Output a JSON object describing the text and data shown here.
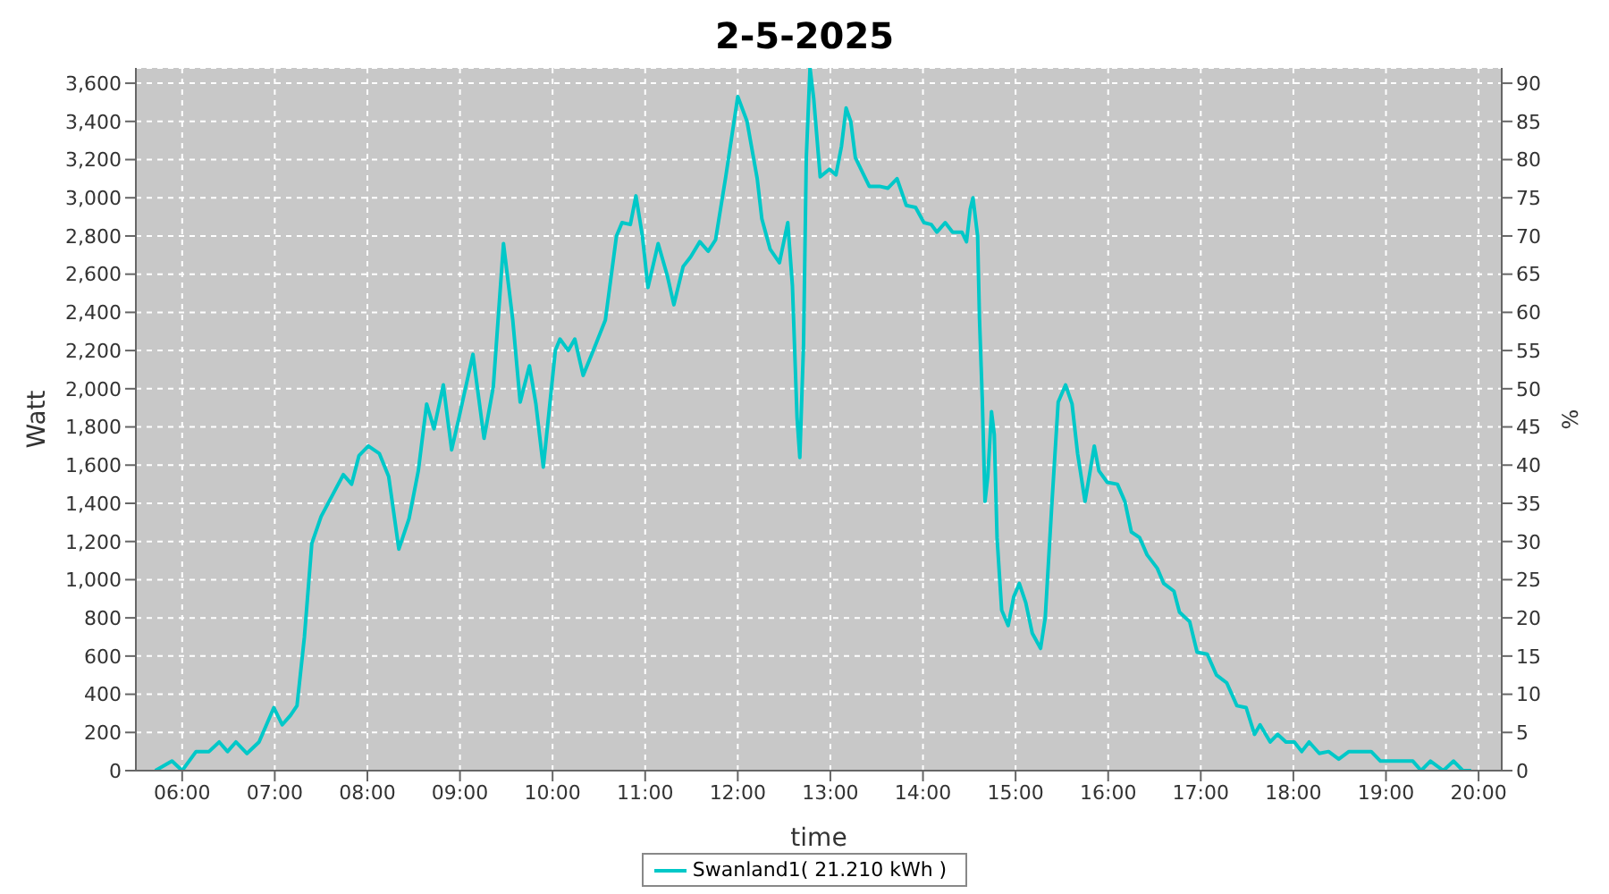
{
  "chart_data": {
    "type": "line",
    "title": "2-5-2025",
    "xlabel": "time",
    "ylabel": "Watt",
    "y2label": "%",
    "x": [
      5.71,
      5.89,
      6.0,
      6.15,
      6.29,
      6.4,
      6.49,
      6.58,
      6.7,
      6.83,
      6.99,
      7.08,
      7.17,
      7.24,
      7.32,
      7.4,
      7.5,
      7.62,
      7.74,
      7.83,
      7.91,
      8.01,
      8.13,
      8.23,
      8.34,
      8.45,
      8.55,
      8.64,
      8.72,
      8.82,
      8.91,
      8.99,
      9.14,
      9.26,
      9.36,
      9.47,
      9.57,
      9.65,
      9.75,
      9.82,
      9.9,
      10.03,
      10.08,
      10.17,
      10.24,
      10.33,
      10.44,
      10.57,
      10.69,
      10.75,
      10.84,
      10.9,
      10.97,
      11.03,
      11.14,
      11.24,
      11.31,
      11.41,
      11.49,
      11.59,
      11.68,
      11.76,
      11.87,
      12.0,
      12.1,
      12.21,
      12.26,
      12.35,
      12.45,
      12.54,
      12.59,
      12.64,
      12.67,
      12.71,
      12.74,
      12.78,
      12.82,
      12.89,
      12.99,
      13.06,
      13.12,
      13.17,
      13.22,
      13.27,
      13.34,
      13.42,
      13.53,
      13.62,
      13.72,
      13.82,
      13.92,
      14.01,
      14.09,
      14.15,
      14.24,
      14.32,
      14.42,
      14.47,
      14.51,
      14.54,
      14.59,
      14.61,
      14.64,
      14.67,
      14.7,
      14.74,
      14.77,
      14.8,
      14.85,
      14.92,
      14.98,
      15.04,
      15.11,
      15.18,
      15.27,
      15.32,
      15.39,
      15.46,
      15.54,
      15.61,
      15.67,
      15.75,
      15.85,
      15.9,
      15.99,
      16.1,
      16.18,
      16.25,
      16.34,
      16.42,
      16.53,
      16.6,
      16.71,
      16.77,
      16.88,
      16.96,
      17.07,
      17.17,
      17.28,
      17.39,
      17.49,
      17.58,
      17.64,
      17.75,
      17.83,
      17.92,
      18.01,
      18.09,
      18.17,
      18.28,
      18.38,
      18.49,
      18.6,
      18.84,
      18.94,
      19.29,
      19.38,
      19.48,
      19.62,
      19.73,
      19.83,
      19.92
    ],
    "series": [
      {
        "name": "Swanland1( 21.210 kWh )",
        "color": "#00c8c8",
        "values": [
          0,
          50,
          0,
          100,
          100,
          150,
          100,
          150,
          90,
          150,
          330,
          240,
          290,
          340,
          700,
          1190,
          1330,
          1440,
          1550,
          1500,
          1650,
          1700,
          1660,
          1540,
          1160,
          1320,
          1570,
          1920,
          1790,
          2020,
          1680,
          1850,
          2180,
          1740,
          2010,
          2760,
          2360,
          1930,
          2120,
          1920,
          1590,
          2200,
          2260,
          2200,
          2260,
          2070,
          2200,
          2360,
          2800,
          2870,
          2860,
          3010,
          2800,
          2530,
          2760,
          2590,
          2440,
          2640,
          2690,
          2770,
          2720,
          2780,
          3110,
          3530,
          3400,
          3100,
          2890,
          2730,
          2660,
          2870,
          2540,
          1850,
          1640,
          2230,
          3210,
          3680,
          3520,
          3110,
          3150,
          3120,
          3270,
          3470,
          3400,
          3210,
          3140,
          3060,
          3060,
          3050,
          3100,
          2960,
          2950,
          2870,
          2860,
          2820,
          2870,
          2820,
          2820,
          2770,
          2940,
          3000,
          2800,
          2370,
          1950,
          1410,
          1540,
          1880,
          1760,
          1220,
          840,
          760,
          910,
          980,
          880,
          720,
          640,
          800,
          1380,
          1930,
          2020,
          1920,
          1660,
          1410,
          1700,
          1570,
          1510,
          1500,
          1410,
          1250,
          1220,
          1130,
          1060,
          980,
          940,
          830,
          780,
          620,
          610,
          500,
          460,
          340,
          330,
          190,
          240,
          150,
          190,
          150,
          150,
          100,
          150,
          90,
          100,
          60,
          100,
          100,
          50,
          50,
          0,
          50,
          0,
          50,
          0,
          0
        ]
      }
    ],
    "xlim": [
      5.5,
      20.25
    ],
    "xticks": [
      {
        "value": 6,
        "label": "06:00"
      },
      {
        "value": 7,
        "label": "07:00"
      },
      {
        "value": 8,
        "label": "08:00"
      },
      {
        "value": 9,
        "label": "09:00"
      },
      {
        "value": 10,
        "label": "10:00"
      },
      {
        "value": 11,
        "label": "11:00"
      },
      {
        "value": 12,
        "label": "12:00"
      },
      {
        "value": 13,
        "label": "13:00"
      },
      {
        "value": 14,
        "label": "14:00"
      },
      {
        "value": 15,
        "label": "15:00"
      },
      {
        "value": 16,
        "label": "16:00"
      },
      {
        "value": 17,
        "label": "17:00"
      },
      {
        "value": 18,
        "label": "18:00"
      },
      {
        "value": 19,
        "label": "19:00"
      },
      {
        "value": 20,
        "label": "20:00"
      }
    ],
    "ylim": [
      0,
      3680
    ],
    "yticks": [
      0,
      200,
      400,
      600,
      800,
      {
        "value": 1000,
        "label": "1,000"
      },
      {
        "value": 1200,
        "label": "1,200"
      },
      {
        "value": 1400,
        "label": "1,400"
      },
      {
        "value": 1600,
        "label": "1,600"
      },
      {
        "value": 1800,
        "label": "1,800"
      },
      {
        "value": 2000,
        "label": "2,000"
      },
      {
        "value": 2200,
        "label": "2,200"
      },
      {
        "value": 2400,
        "label": "2,400"
      },
      {
        "value": 2600,
        "label": "2,600"
      },
      {
        "value": 2800,
        "label": "2,800"
      },
      {
        "value": 3000,
        "label": "3,000"
      },
      {
        "value": 3200,
        "label": "3,200"
      },
      {
        "value": 3400,
        "label": "3,400"
      },
      {
        "value": 3600,
        "label": "3,600"
      }
    ],
    "y2lim": [
      0,
      92
    ],
    "y2ticks": [
      0,
      5,
      10,
      15,
      20,
      25,
      30,
      35,
      40,
      45,
      50,
      55,
      60,
      65,
      70,
      75,
      80,
      85,
      90
    ],
    "grid": true,
    "legend": "bottom",
    "marker": "none",
    "line_style": "solid"
  }
}
